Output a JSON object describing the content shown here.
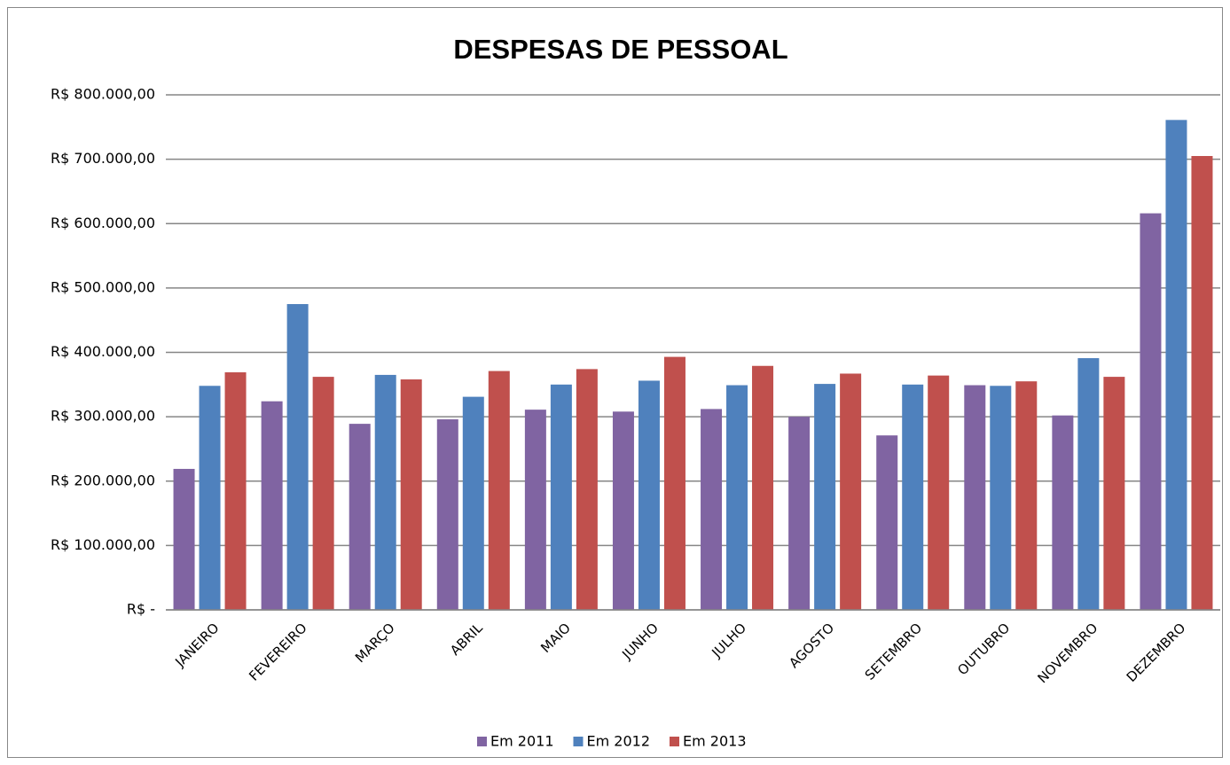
{
  "chart_data": {
    "type": "bar",
    "title": "DESPESAS DE PESSOAL",
    "categories": [
      "JANEIRO",
      "FEVEREIRO",
      "MARÇO",
      "ABRIL",
      "MAIO",
      "JUNHO",
      "JULHO",
      "AGOSTO",
      "SETEMBRO",
      "OUTUBRO",
      "NOVEMBRO",
      "DEZEMBRO"
    ],
    "series": [
      {
        "name": "Em 2011",
        "color": "#8064a2",
        "values": [
          219000,
          324000,
          289000,
          296000,
          311000,
          308000,
          312000,
          300000,
          271000,
          349000,
          302000,
          616000
        ]
      },
      {
        "name": "Em 2012",
        "color": "#4f81bd",
        "values": [
          348000,
          475000,
          365000,
          331000,
          350000,
          356000,
          349000,
          351000,
          350000,
          348000,
          391000,
          761000
        ]
      },
      {
        "name": "Em 2013",
        "color": "#c0504d",
        "values": [
          369000,
          362000,
          358000,
          371000,
          374000,
          393000,
          379000,
          367000,
          364000,
          355000,
          362000,
          705000
        ]
      }
    ],
    "ylim": [
      0,
      800000
    ],
    "yticks": [
      {
        "value": 0,
        "label": "R$ -"
      },
      {
        "value": 100000,
        "label": "R$ 100.000,00"
      },
      {
        "value": 200000,
        "label": "R$ 200.000,00"
      },
      {
        "value": 300000,
        "label": "R$ 300.000,00"
      },
      {
        "value": 400000,
        "label": "R$ 400.000,00"
      },
      {
        "value": 500000,
        "label": "R$ 500.000,00"
      },
      {
        "value": 600000,
        "label": "R$ 600.000,00"
      },
      {
        "value": 700000,
        "label": "R$ 700.000,00"
      },
      {
        "value": 800000,
        "label": "R$ 800.000,00"
      }
    ],
    "grid": true,
    "legend": "bottom"
  }
}
